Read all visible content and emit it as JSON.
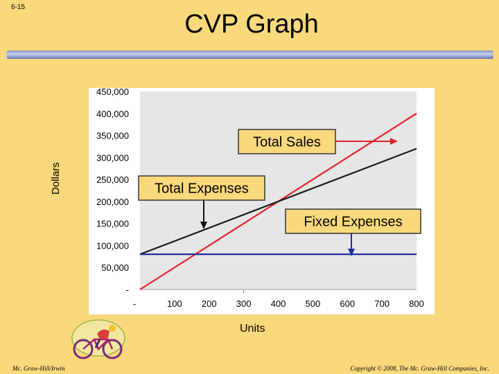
{
  "slide_number": "6-15",
  "title": "CVP Graph",
  "footer": {
    "left": "Mc. Graw-Hill/Irwin",
    "right": "Copyright © 2008, The Mc. Graw-Hill Companies, Inc."
  },
  "colors": {
    "background": "#FAD97C",
    "plot_area": "#E6E6E6",
    "sales_line": "#E8202A",
    "expense_line": "#1A1A1A",
    "fixed_line": "#1F2E9E",
    "callout_border": "#333333",
    "arrow_red": "#E8202A",
    "arrow_black": "#111111",
    "arrow_blue": "#1F2E9E"
  },
  "icons": {
    "cyclist": "cyclist-icon"
  },
  "chart_data": {
    "type": "line",
    "title": "CVP Graph",
    "xlabel": "Units",
    "ylabel": "Dollars",
    "xlim": [
      0,
      800
    ],
    "ylim": [
      0,
      450000
    ],
    "x_ticks": [
      {
        "value": 0,
        "label": "-"
      },
      {
        "value": 100,
        "label": "100"
      },
      {
        "value": 200,
        "label": "200"
      },
      {
        "value": 300,
        "label": "300"
      },
      {
        "value": 400,
        "label": "400"
      },
      {
        "value": 500,
        "label": "500"
      },
      {
        "value": 600,
        "label": "600"
      },
      {
        "value": 700,
        "label": "700"
      },
      {
        "value": 800,
        "label": "800"
      }
    ],
    "y_ticks": [
      {
        "value": 0,
        "label": "-"
      },
      {
        "value": 50000,
        "label": "50,000"
      },
      {
        "value": 100000,
        "label": "100,000"
      },
      {
        "value": 150000,
        "label": "150,000"
      },
      {
        "value": 200000,
        "label": "200,000"
      },
      {
        "value": 250000,
        "label": "250,000"
      },
      {
        "value": 300000,
        "label": "300,000"
      },
      {
        "value": 350000,
        "label": "350,000"
      },
      {
        "value": 400000,
        "label": "400,000"
      },
      {
        "value": 450000,
        "label": "450,000"
      }
    ],
    "grid": false,
    "series": [
      {
        "key": "sales",
        "x": [
          0,
          800
        ],
        "y": [
          0,
          400000
        ]
      },
      {
        "key": "total_expenses",
        "x": [
          0,
          800
        ],
        "y": [
          80000,
          320000
        ]
      },
      {
        "key": "fixed_expenses",
        "x": [
          0,
          800
        ],
        "y": [
          80000,
          80000
        ]
      }
    ],
    "annotations": [
      {
        "key": "sales",
        "text": "Total Sales"
      },
      {
        "key": "total_expenses",
        "text": "Total Expenses"
      },
      {
        "key": "fixed_expenses",
        "text": "Fixed Expenses"
      }
    ]
  }
}
